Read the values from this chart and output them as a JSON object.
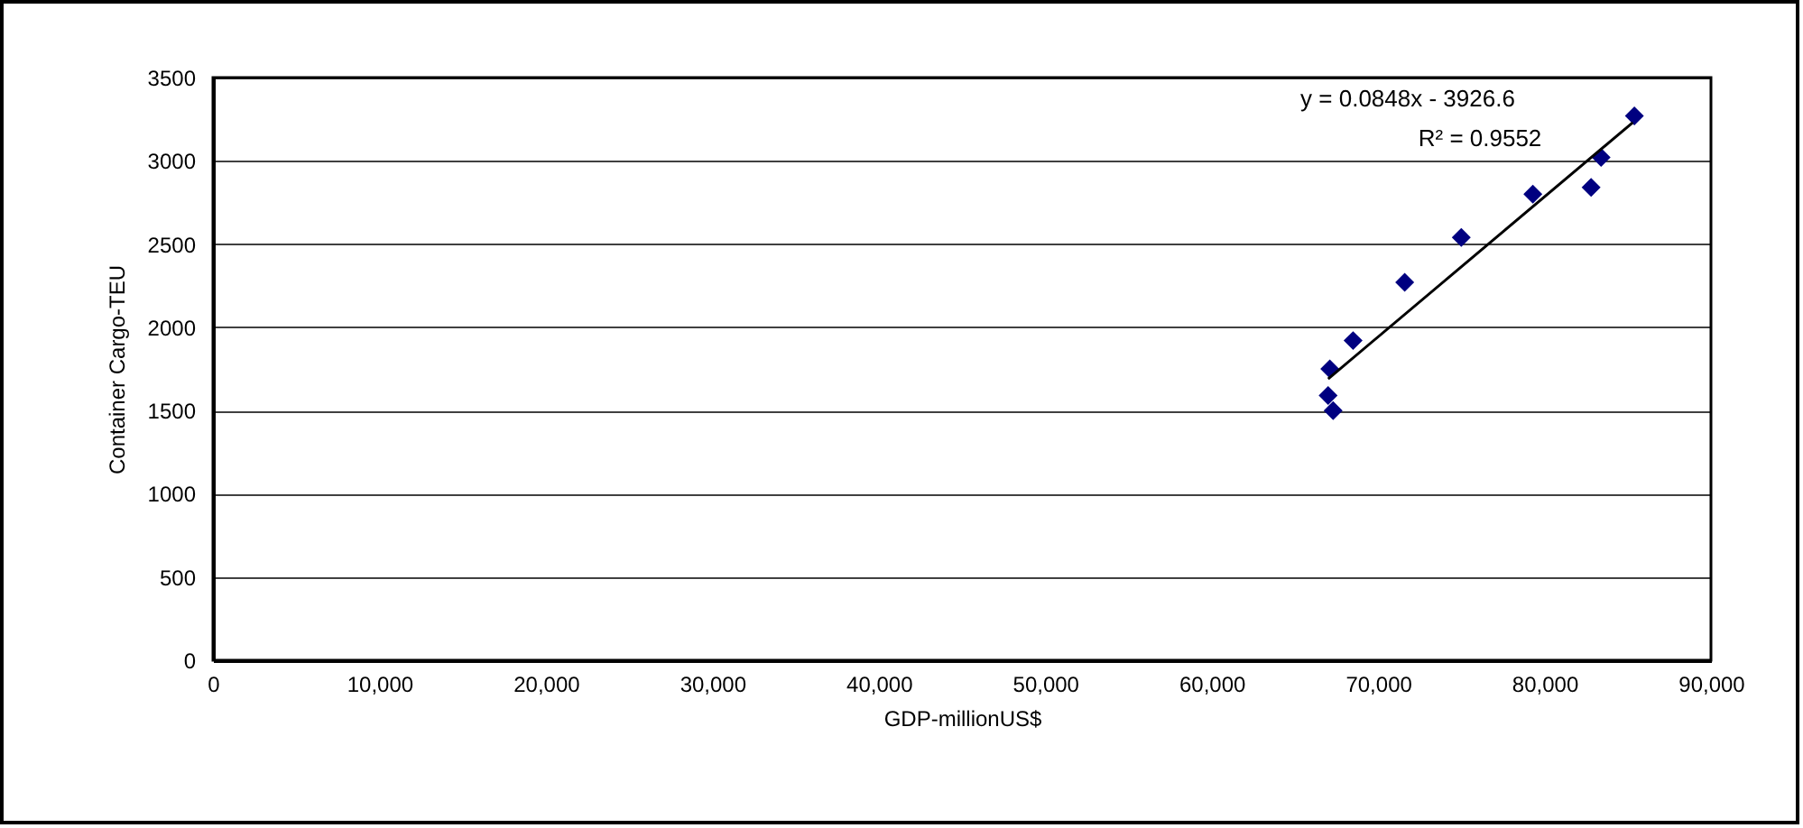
{
  "chart_data": {
    "type": "scatter",
    "xlabel": "GDP-millionUS$",
    "ylabel": "Container Cargo-TEU",
    "x": [
      67100,
      67000,
      67300,
      68500,
      71600,
      75000,
      79300,
      82800,
      83400,
      85400
    ],
    "series": [
      {
        "color": "#000080",
        "values": [
          1750,
          1590,
          1500,
          1920,
          2270,
          2540,
          2800,
          2840,
          3020,
          3270
        ]
      },
      {
        "type": "line",
        "marker": "none",
        "color": "#000000",
        "x": [
          67000,
          85300
        ],
        "values": [
          1690,
          3230
        ]
      }
    ],
    "annotations": [
      "y = 0.0848x - 3926.6",
      "R² = 0.9552"
    ],
    "xlim": [
      0,
      90000
    ],
    "xticks": [
      {
        "value": 0,
        "label": "0"
      },
      {
        "value": 10000,
        "label": "10,000"
      },
      {
        "value": 20000,
        "label": "20,000"
      },
      {
        "value": 30000,
        "label": "30,000"
      },
      {
        "value": 40000,
        "label": "40,000"
      },
      {
        "value": 50000,
        "label": "50,000"
      },
      {
        "value": 60000,
        "label": "60,000"
      },
      {
        "value": 70000,
        "label": "70,000"
      },
      {
        "value": 80000,
        "label": "80,000"
      },
      {
        "value": 90000,
        "label": "90,000"
      }
    ],
    "ylim": [
      0,
      3500
    ],
    "yticks": [
      0,
      500,
      1000,
      1500,
      2000,
      2500,
      3000,
      3500
    ],
    "grid": "y",
    "marker": "diamond"
  }
}
